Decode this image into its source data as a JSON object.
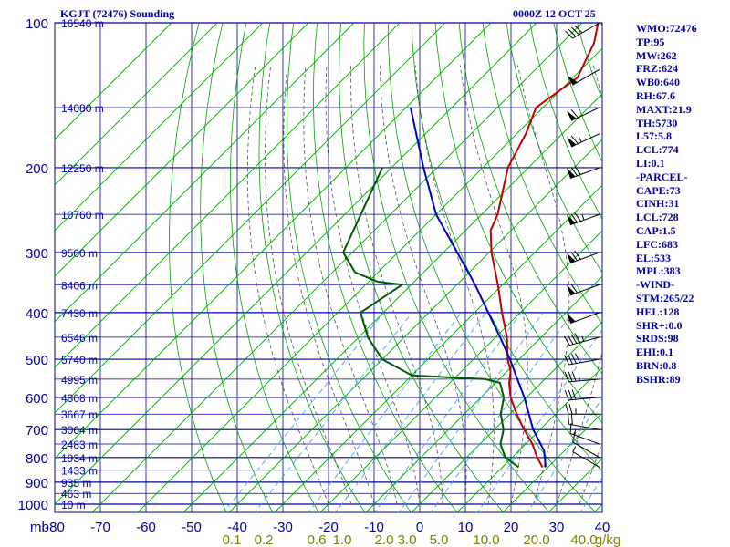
{
  "header": {
    "station": "KGJT (72476) Sounding",
    "time": "0000Z 12 OCT 25"
  },
  "indices": [
    "WMO:72476",
    "TP:95",
    "MW:262",
    "FRZ:624",
    "WB0:640",
    "RH:67.6",
    "MAXT:21.9",
    "TH:5730",
    "L57:5.8",
    "LCL:774",
    "LI:0.1",
    "-PARCEL-",
    "CAPE:73",
    "CINH:31",
    "LCL:728",
    "CAP:1.5",
    "LFC:683",
    "EL:533",
    "MPL:383",
    "-WIND-",
    "STM:265/22",
    "HEL:128",
    "SHR+:0.0",
    "SRDS:98",
    "EHI:0.1",
    "BRN:0.8",
    "BSHR:89"
  ],
  "chart_data": {
    "type": "line",
    "title": "KGJT (72476) Sounding",
    "ylabel": "mb",
    "xlabel": "",
    "pressure_ticks": [
      100,
      200,
      300,
      400,
      500,
      600,
      700,
      800,
      900,
      1000
    ],
    "pressure_tick_labels": [
      "100",
      "200",
      "300",
      "400",
      "500",
      "600",
      "700",
      "800",
      "900",
      "1000"
    ],
    "temperature_ticks": [
      -80,
      -70,
      -60,
      -50,
      -40,
      -30,
      -20,
      -10,
      0,
      10,
      20,
      30,
      40
    ],
    "temperature_tick_labels": [
      "-80",
      "-70",
      "-60",
      "-50",
      "-40",
      "-30",
      "-20",
      "-10",
      "0",
      "10",
      "20",
      "30",
      "40"
    ],
    "mixing_ratio_labels": [
      "0.1",
      "0.2",
      "0.6",
      "1.0",
      "2.0",
      "3.0",
      "5.0",
      "10.0",
      "20.0",
      "40.0",
      "g/kg"
    ],
    "height_labels": [
      {
        "p": 100,
        "label": "16540 m"
      },
      {
        "p": 150,
        "label": "14080 m"
      },
      {
        "p": 200,
        "label": "12250 m"
      },
      {
        "p": 250,
        "label": "10760 m"
      },
      {
        "p": 300,
        "label": "9500 m"
      },
      {
        "p": 350,
        "label": "8406 m"
      },
      {
        "p": 400,
        "label": "7430 m"
      },
      {
        "p": 450,
        "label": "6546 m"
      },
      {
        "p": 500,
        "label": "5740 m"
      },
      {
        "p": 550,
        "label": "4995 m"
      },
      {
        "p": 600,
        "label": "4308 m"
      },
      {
        "p": 650,
        "label": "3667 m"
      },
      {
        "p": 700,
        "label": "3064 m"
      },
      {
        "p": 750,
        "label": "2483 m"
      },
      {
        "p": 800,
        "label": "1934 m"
      },
      {
        "p": 850,
        "label": "1433 m"
      },
      {
        "p": 900,
        "label": "935 m"
      },
      {
        "p": 950,
        "label": "463 m"
      },
      {
        "p": 1000,
        "label": "10 m"
      }
    ],
    "grid": true,
    "series": [
      {
        "key": "temperature",
        "color": "#c00000",
        "points": [
          [
            838,
            18.8
          ],
          [
            800,
            15.5
          ],
          [
            750,
            11.5
          ],
          [
            700,
            6.5
          ],
          [
            650,
            1.5
          ],
          [
            600,
            -3.5
          ],
          [
            560,
            -7.0
          ],
          [
            530,
            -9.2
          ],
          [
            500,
            -12.5
          ],
          [
            450,
            -17.5
          ],
          [
            400,
            -24.0
          ],
          [
            350,
            -31.0
          ],
          [
            300,
            -39.5
          ],
          [
            270,
            -44.5
          ],
          [
            250,
            -46.5
          ],
          [
            200,
            -54.5
          ],
          [
            170,
            -58.0
          ],
          [
            150,
            -61.5
          ],
          [
            130,
            -59.0
          ],
          [
            110,
            -63.0
          ],
          [
            100,
            -66.5
          ]
        ]
      },
      {
        "key": "dewpoint",
        "color": "#005a00",
        "points": [
          [
            838,
            13.6
          ],
          [
            800,
            8.5
          ],
          [
            750,
            4.5
          ],
          [
            700,
            2.0
          ],
          [
            650,
            -2.0
          ],
          [
            600,
            -5.0
          ],
          [
            560,
            -9.0
          ],
          [
            550,
            -13.0
          ],
          [
            540,
            -30.0
          ],
          [
            500,
            -40.0
          ],
          [
            450,
            -48.0
          ],
          [
            400,
            -55.0
          ],
          [
            350,
            -52.0
          ],
          [
            345,
            -58.0
          ],
          [
            330,
            -65.0
          ],
          [
            300,
            -72.0
          ],
          [
            200,
            -82.0
          ]
        ]
      },
      {
        "key": "parcel",
        "color": "#0000c0",
        "points": [
          [
            838,
            19.5
          ],
          [
            774,
            15.5
          ],
          [
            700,
            8.5
          ],
          [
            600,
            -0.5
          ],
          [
            533,
            -8.0
          ],
          [
            500,
            -12.0
          ],
          [
            450,
            -19.0
          ],
          [
            400,
            -27.0
          ],
          [
            350,
            -36.0
          ],
          [
            300,
            -47.0
          ],
          [
            250,
            -60.0
          ],
          [
            200,
            -73.0
          ],
          [
            150,
            -89.0
          ]
        ]
      }
    ],
    "wind_barbs": [
      {
        "p": 838,
        "dir": 300,
        "spd": 5
      },
      {
        "p": 800,
        "dir": 300,
        "spd": 10
      },
      {
        "p": 750,
        "dir": 290,
        "spd": 15
      },
      {
        "p": 700,
        "dir": 280,
        "spd": 20
      },
      {
        "p": 650,
        "dir": 270,
        "spd": 25
      },
      {
        "p": 600,
        "dir": 265,
        "spd": 30
      },
      {
        "p": 550,
        "dir": 265,
        "spd": 35
      },
      {
        "p": 500,
        "dir": 260,
        "spd": 40
      },
      {
        "p": 450,
        "dir": 255,
        "spd": 45
      },
      {
        "p": 400,
        "dir": 250,
        "spd": 50
      },
      {
        "p": 350,
        "dir": 250,
        "spd": 60
      },
      {
        "p": 300,
        "dir": 250,
        "spd": 70
      },
      {
        "p": 250,
        "dir": 250,
        "spd": 75
      },
      {
        "p": 200,
        "dir": 250,
        "spd": 70
      },
      {
        "p": 170,
        "dir": 245,
        "spd": 65
      },
      {
        "p": 150,
        "dir": 245,
        "spd": 60
      },
      {
        "p": 125,
        "dir": 240,
        "spd": 50
      },
      {
        "p": 100,
        "dir": 240,
        "spd": 40
      }
    ],
    "colors": {
      "isobar": "#0000a0",
      "isotherm": "#0000a0",
      "dry_adiabat": "#00a000",
      "moist_adiabat": "#505050",
      "mixing_ratio": "#40a0ff",
      "label": "#0000a0",
      "barb": "#000000",
      "mixing_label": "#808000"
    }
  }
}
